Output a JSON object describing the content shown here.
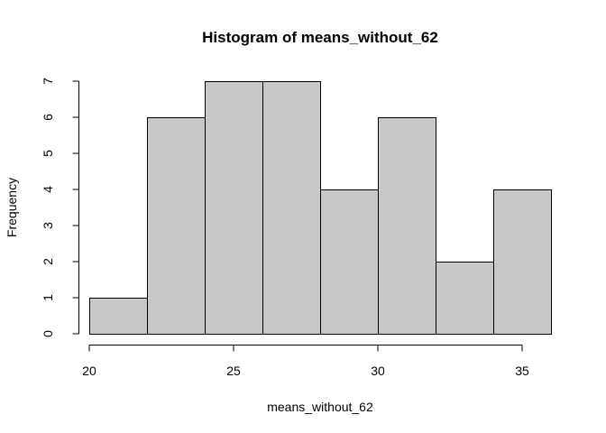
{
  "chart_data": {
    "type": "bar",
    "title": "Histogram of means_without_62",
    "xlabel": "means_without_62",
    "ylabel": "Frequency",
    "bins": [
      {
        "from": 20,
        "to": 22,
        "count": 1
      },
      {
        "from": 22,
        "to": 24,
        "count": 6
      },
      {
        "from": 24,
        "to": 26,
        "count": 7
      },
      {
        "from": 26,
        "to": 28,
        "count": 7
      },
      {
        "from": 28,
        "to": 30,
        "count": 4
      },
      {
        "from": 30,
        "to": 32,
        "count": 6
      },
      {
        "from": 32,
        "to": 34,
        "count": 2
      },
      {
        "from": 34,
        "to": 36,
        "count": 4
      }
    ],
    "xlim": [
      20,
      36
    ],
    "ylim": [
      0,
      7
    ],
    "x_ticks": [
      20,
      25,
      30,
      35
    ],
    "y_ticks": [
      0,
      1,
      2,
      3,
      4,
      5,
      6,
      7
    ],
    "grid": false,
    "bar_color": "#c8c8c8"
  }
}
